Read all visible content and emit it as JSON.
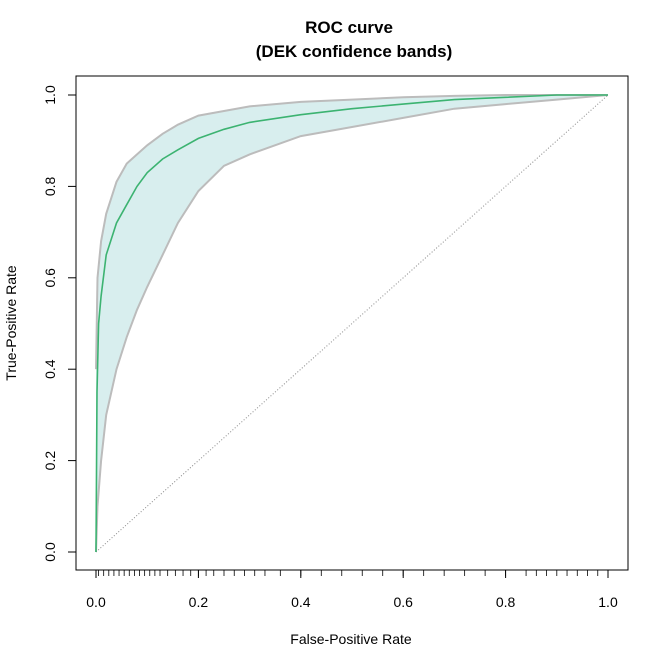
{
  "chart_data": {
    "type": "line",
    "title": "ROC curve",
    "subtitle": "(DEK confidence bands)",
    "xlabel": "False-Positive Rate",
    "ylabel": "True-Positive Rate",
    "xlim": [
      0,
      1
    ],
    "ylim": [
      0,
      1
    ],
    "x_ticks": [
      "0.0",
      "0.2",
      "0.4",
      "0.6",
      "0.8",
      "1.0"
    ],
    "y_ticks": [
      "0.0",
      "0.2",
      "0.4",
      "0.6",
      "0.8",
      "1.0"
    ],
    "grid": false,
    "legend": "none",
    "colors": {
      "roc_line": "#3cb371",
      "band_fill": "#d8eeee",
      "band_edge": "#bcbcbc",
      "diagonal": "#888888"
    },
    "roc_curve": {
      "x": [
        0,
        0.002,
        0.005,
        0.01,
        0.02,
        0.04,
        0.06,
        0.08,
        0.1,
        0.13,
        0.16,
        0.2,
        0.25,
        0.3,
        0.4,
        0.5,
        0.6,
        0.7,
        0.8,
        0.9,
        1.0
      ],
      "y": [
        0,
        0.35,
        0.5,
        0.56,
        0.65,
        0.72,
        0.76,
        0.8,
        0.83,
        0.86,
        0.88,
        0.905,
        0.925,
        0.94,
        0.957,
        0.97,
        0.98,
        0.99,
        0.995,
        1.0,
        1.0
      ]
    },
    "upper_band": {
      "x": [
        0,
        0.003,
        0.01,
        0.02,
        0.04,
        0.06,
        0.08,
        0.1,
        0.13,
        0.16,
        0.2,
        0.25,
        0.3,
        0.4,
        0.5,
        0.6,
        0.7,
        0.8,
        0.9,
        1.0
      ],
      "y": [
        0.4,
        0.6,
        0.68,
        0.74,
        0.81,
        0.85,
        0.87,
        0.89,
        0.915,
        0.935,
        0.955,
        0.965,
        0.975,
        0.985,
        0.99,
        0.995,
        0.998,
        1.0,
        1.0,
        1.0
      ]
    },
    "lower_band": {
      "x": [
        0,
        0.003,
        0.01,
        0.02,
        0.04,
        0.06,
        0.08,
        0.1,
        0.13,
        0.16,
        0.2,
        0.25,
        0.3,
        0.4,
        0.5,
        0.6,
        0.7,
        0.8,
        0.9,
        1.0
      ],
      "y": [
        0,
        0.1,
        0.2,
        0.3,
        0.4,
        0.47,
        0.53,
        0.58,
        0.65,
        0.72,
        0.79,
        0.845,
        0.87,
        0.91,
        0.93,
        0.95,
        0.97,
        0.98,
        0.99,
        1.0
      ]
    },
    "rug_x": [
      0.005,
      0.015,
      0.025,
      0.035,
      0.045,
      0.055,
      0.065,
      0.075,
      0.085,
      0.095,
      0.105,
      0.115,
      0.125,
      0.14,
      0.155,
      0.17,
      0.185,
      0.2,
      0.215,
      0.23,
      0.25,
      0.27,
      0.29,
      0.31,
      0.33,
      0.36,
      0.4,
      0.44,
      0.48,
      0.52,
      0.56,
      0.6,
      0.64,
      0.68,
      0.72,
      0.76,
      0.8,
      0.84,
      0.86,
      0.88,
      0.9,
      0.92,
      0.94,
      0.96,
      0.98,
      1.0
    ]
  }
}
